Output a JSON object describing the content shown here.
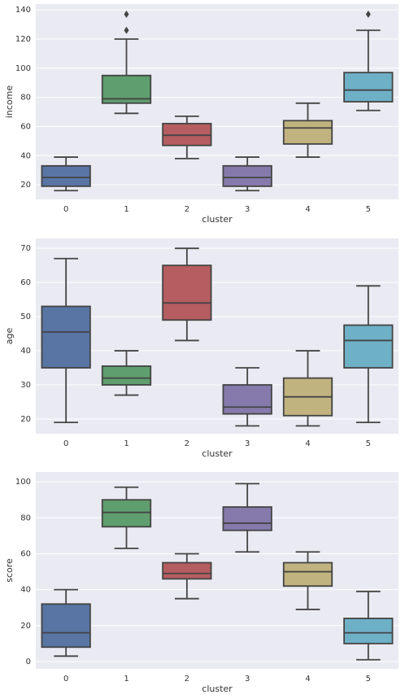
{
  "chart_data": [
    {
      "type": "box",
      "x_label": "cluster",
      "y_label": "income",
      "categories": [
        "0",
        "1",
        "2",
        "3",
        "4",
        "5"
      ],
      "colors": [
        "#5875a4",
        "#5f9e6e",
        "#b55d60",
        "#857aab",
        "#c1b37f",
        "#6eb0c6"
      ],
      "ylim": [
        10,
        144
      ],
      "yticks": [
        20,
        40,
        60,
        80,
        100,
        120,
        140
      ],
      "grid": true,
      "boxes": [
        {
          "low": 16,
          "q1": 19,
          "median": 25,
          "q3": 33,
          "high": 39
        },
        {
          "low": 69,
          "q1": 76,
          "median": 79,
          "q3": 95,
          "high": 120,
          "outliers": [
            126,
            137
          ]
        },
        {
          "low": 38,
          "q1": 47,
          "median": 54,
          "q3": 62,
          "high": 67
        },
        {
          "low": 16,
          "q1": 19,
          "median": 25,
          "q3": 33,
          "high": 39
        },
        {
          "low": 39,
          "q1": 48,
          "median": 59,
          "q3": 64,
          "high": 76
        },
        {
          "low": 71,
          "q1": 77,
          "median": 85,
          "q3": 97,
          "high": 126,
          "outliers": [
            137
          ]
        }
      ]
    },
    {
      "type": "box",
      "x_label": "cluster",
      "y_label": "age",
      "categories": [
        "0",
        "1",
        "2",
        "3",
        "4",
        "5"
      ],
      "colors": [
        "#5875a4",
        "#5f9e6e",
        "#b55d60",
        "#857aab",
        "#c1b37f",
        "#6eb0c6"
      ],
      "ylim": [
        15.7,
        72.9
      ],
      "yticks": [
        20,
        30,
        40,
        50,
        60,
        70
      ],
      "grid": true,
      "boxes": [
        {
          "low": 19,
          "q1": 35,
          "median": 45.5,
          "q3": 53,
          "high": 67
        },
        {
          "low": 27,
          "q1": 30,
          "median": 32,
          "q3": 35.5,
          "high": 40
        },
        {
          "low": 43,
          "q1": 49,
          "median": 54,
          "q3": 65,
          "high": 70
        },
        {
          "low": 18,
          "q1": 21.5,
          "median": 23.5,
          "q3": 30,
          "high": 35
        },
        {
          "low": 18,
          "q1": 21,
          "median": 26.5,
          "q3": 32,
          "high": 40
        },
        {
          "low": 19,
          "q1": 35,
          "median": 43,
          "q3": 47.5,
          "high": 59
        }
      ]
    },
    {
      "type": "box",
      "x_label": "cluster",
      "y_label": "score",
      "categories": [
        "0",
        "1",
        "2",
        "3",
        "4",
        "5"
      ],
      "colors": [
        "#5875a4",
        "#5f9e6e",
        "#b55d60",
        "#857aab",
        "#c1b37f",
        "#6eb0c6"
      ],
      "ylim": [
        -4.1,
        105.5
      ],
      "yticks": [
        0,
        20,
        40,
        60,
        80,
        100
      ],
      "grid": true,
      "boxes": [
        {
          "low": 3,
          "q1": 8,
          "median": 16,
          "q3": 32,
          "high": 40
        },
        {
          "low": 63,
          "q1": 75,
          "median": 83,
          "q3": 90,
          "high": 97
        },
        {
          "low": 35,
          "q1": 46,
          "median": 49,
          "q3": 55,
          "high": 60
        },
        {
          "low": 61,
          "q1": 73,
          "median": 77,
          "q3": 86,
          "high": 99
        },
        {
          "low": 29,
          "q1": 42,
          "median": 50,
          "q3": 55,
          "high": 61
        },
        {
          "low": 1,
          "q1": 10,
          "median": 16,
          "q3": 24,
          "high": 39
        }
      ]
    }
  ]
}
